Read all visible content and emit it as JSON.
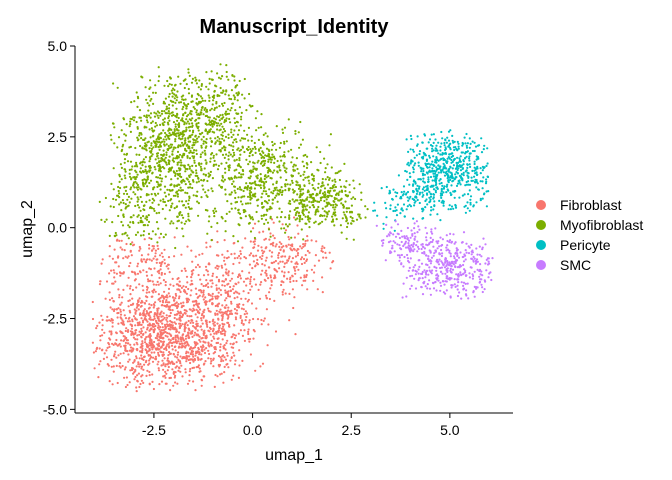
{
  "chart_data": {
    "type": "scatter",
    "title": "Manuscript_Identity",
    "xlabel": "umap_1",
    "ylabel": "umap_2",
    "xlim": [
      -4.5,
      6.6
    ],
    "ylim": [
      -5.1,
      5.0
    ],
    "x_ticks": [
      -2.5,
      0.0,
      2.5,
      5.0
    ],
    "x_tick_labels": [
      "-2.5",
      "0.0",
      "2.5",
      "5.0"
    ],
    "y_ticks": [
      -5.0,
      -2.5,
      0.0,
      2.5,
      5.0
    ],
    "y_tick_labels": [
      "-5.0",
      "-2.5",
      "0.0",
      "2.5",
      "5.0"
    ],
    "grid": false,
    "legend_position": "right",
    "series": [
      {
        "name": "Fibroblast",
        "color": "#F8766D",
        "clusters": [
          {
            "center": [
              -2.3,
              -2.9
            ],
            "sd": [
              0.85,
              0.75
            ],
            "count": 1150,
            "x_range": [
              -4.1,
              -0.3
            ],
            "y_range": [
              -4.5,
              -0.4
            ]
          },
          {
            "center": [
              -0.8,
              -2.2
            ],
            "sd": [
              0.7,
              0.9
            ],
            "count": 450,
            "x_range": [
              -2.0,
              1.2
            ],
            "y_range": [
              -4.2,
              0.0
            ]
          },
          {
            "center": [
              0.8,
              -0.9
            ],
            "sd": [
              0.6,
              0.55
            ],
            "count": 220,
            "x_range": [
              -0.4,
              2.2
            ],
            "y_range": [
              -2.0,
              0.6
            ]
          },
          {
            "center": [
              -3.0,
              -1.0
            ],
            "sd": [
              0.6,
              0.4
            ],
            "count": 120,
            "x_range": [
              -3.9,
              -1.8
            ],
            "y_range": [
              -1.6,
              -0.2
            ]
          }
        ]
      },
      {
        "name": "Myofibroblast",
        "color": "#7CAE00",
        "clusters": [
          {
            "center": [
              -2.1,
              2.0
            ],
            "sd": [
              0.75,
              1.0
            ],
            "count": 900,
            "x_range": [
              -3.6,
              -0.4
            ],
            "y_range": [
              -0.6,
              4.3
            ]
          },
          {
            "center": [
              -1.2,
              3.2
            ],
            "sd": [
              0.6,
              0.6
            ],
            "count": 300,
            "x_range": [
              -2.4,
              0.3
            ],
            "y_range": [
              2.0,
              4.5
            ]
          },
          {
            "center": [
              0.3,
              1.4
            ],
            "sd": [
              0.75,
              0.7
            ],
            "count": 520,
            "x_range": [
              -1.0,
              2.0
            ],
            "y_range": [
              -0.4,
              3.0
            ]
          },
          {
            "center": [
              1.7,
              0.8
            ],
            "sd": [
              0.5,
              0.45
            ],
            "count": 230,
            "x_range": [
              1.0,
              2.6
            ],
            "y_range": [
              0.0,
              1.8
            ]
          },
          {
            "center": [
              2.4,
              0.5
            ],
            "sd": [
              0.3,
              0.35
            ],
            "count": 50,
            "x_range": [
              2.0,
              3.0
            ],
            "y_range": [
              -0.6,
              1.2
            ]
          },
          {
            "center": [
              -3.1,
              0.5
            ],
            "sd": [
              0.35,
              0.5
            ],
            "count": 90,
            "x_range": [
              -3.9,
              -2.3
            ],
            "y_range": [
              -0.5,
              1.4
            ]
          }
        ]
      },
      {
        "name": "Pericyte",
        "color": "#00BFC4",
        "clusters": [
          {
            "center": [
              5.0,
              1.6
            ],
            "sd": [
              0.55,
              0.55
            ],
            "count": 520,
            "x_range": [
              3.9,
              6.0
            ],
            "y_range": [
              0.4,
              2.7
            ]
          },
          {
            "center": [
              4.2,
              0.9
            ],
            "sd": [
              0.4,
              0.35
            ],
            "count": 120,
            "x_range": [
              3.3,
              5.0
            ],
            "y_range": [
              0.2,
              1.6
            ]
          },
          {
            "center": [
              3.3,
              0.5
            ],
            "sd": [
              0.3,
              0.3
            ],
            "count": 18,
            "x_range": [
              2.9,
              3.8
            ],
            "y_range": [
              -0.2,
              1.1
            ]
          }
        ]
      },
      {
        "name": "SMC",
        "color": "#C77CFF",
        "clusters": [
          {
            "center": [
              5.0,
              -1.1
            ],
            "sd": [
              0.6,
              0.45
            ],
            "count": 380,
            "x_range": [
              3.7,
              6.1
            ],
            "y_range": [
              -2.0,
              -0.1
            ]
          },
          {
            "center": [
              3.9,
              -0.4
            ],
            "sd": [
              0.4,
              0.3
            ],
            "count": 110,
            "x_range": [
              3.1,
              4.8
            ],
            "y_range": [
              -1.0,
              0.2
            ]
          }
        ]
      }
    ]
  }
}
